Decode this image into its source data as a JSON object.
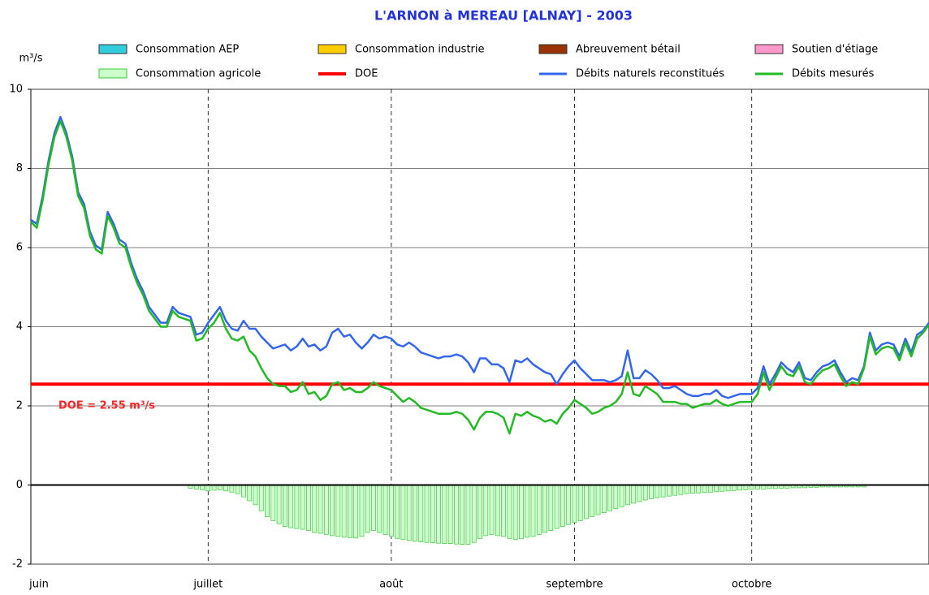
{
  "chart_data": {
    "type": "line",
    "title": "L'ARNON à MEREAU [ALNAY] - 2003",
    "y_label": "m³/s",
    "annotation": "DOE = 2.55 m³/s",
    "ylim": [
      -2,
      10
    ],
    "yticks": [
      -2,
      0,
      2,
      4,
      6,
      8,
      10
    ],
    "grid": true,
    "categories": [
      "juin",
      null,
      null,
      null,
      null,
      null,
      null,
      null,
      null,
      null,
      null,
      null,
      null,
      null,
      null,
      null,
      null,
      null,
      null,
      null,
      null,
      null,
      null,
      null,
      null,
      null,
      null,
      null,
      null,
      null,
      "juillet",
      null,
      null,
      null,
      null,
      null,
      null,
      null,
      null,
      null,
      null,
      null,
      null,
      null,
      null,
      null,
      null,
      null,
      null,
      null,
      null,
      null,
      null,
      null,
      null,
      null,
      null,
      null,
      null,
      null,
      null,
      "août",
      null,
      null,
      null,
      null,
      null,
      null,
      null,
      null,
      null,
      null,
      null,
      null,
      null,
      null,
      null,
      null,
      null,
      null,
      null,
      null,
      null,
      null,
      null,
      null,
      null,
      null,
      null,
      null,
      null,
      null,
      "septembre",
      null,
      null,
      null,
      null,
      null,
      null,
      null,
      null,
      null,
      null,
      null,
      null,
      null,
      null,
      null,
      null,
      null,
      null,
      null,
      null,
      null,
      null,
      null,
      null,
      null,
      null,
      null,
      null,
      null,
      "octobre",
      null,
      null,
      null,
      null,
      null,
      null,
      null,
      null,
      null,
      null,
      null,
      null,
      null,
      null,
      null,
      null,
      null,
      null,
      null,
      null,
      null,
      null,
      null,
      null,
      null,
      null,
      null,
      null,
      null,
      null
    ],
    "series": [
      {
        "name": "Consommation AEP",
        "type": "area",
        "color": "#33ccdd"
      },
      {
        "name": "Consommation industrie",
        "type": "area",
        "color": "#ffcc00"
      },
      {
        "name": "Abreuvement bétail",
        "type": "area",
        "color": "#993300"
      },
      {
        "name": "Soutien d'étiage",
        "type": "area",
        "color": "#ff99cc"
      },
      {
        "name": "Consommation agricole",
        "type": "bar",
        "color": "#ccffcc",
        "values": [
          null,
          null,
          null,
          null,
          null,
          null,
          null,
          null,
          null,
          null,
          null,
          null,
          null,
          null,
          null,
          null,
          null,
          null,
          null,
          null,
          null,
          null,
          null,
          null,
          null,
          null,
          null,
          -0.08,
          -0.1,
          -0.12,
          -0.15,
          -0.13,
          -0.12,
          -0.15,
          -0.18,
          -0.22,
          -0.3,
          -0.4,
          -0.5,
          -0.65,
          -0.8,
          -0.9,
          -0.98,
          -1.05,
          -1.08,
          -1.1,
          -1.12,
          -1.15,
          -1.2,
          -1.22,
          -1.25,
          -1.28,
          -1.3,
          -1.32,
          -1.33,
          -1.34,
          -1.3,
          -1.2,
          -1.15,
          -1.2,
          -1.25,
          -1.3,
          -1.35,
          -1.38,
          -1.4,
          -1.42,
          -1.44,
          -1.45,
          -1.46,
          -1.47,
          -1.48,
          -1.48,
          -1.49,
          -1.5,
          -1.5,
          -1.45,
          -1.35,
          -1.28,
          -1.25,
          -1.28,
          -1.3,
          -1.35,
          -1.38,
          -1.36,
          -1.32,
          -1.3,
          -1.25,
          -1.2,
          -1.15,
          -1.1,
          -1.05,
          -1.0,
          -0.95,
          -0.9,
          -0.85,
          -0.8,
          -0.75,
          -0.7,
          -0.65,
          -0.6,
          -0.55,
          -0.5,
          -0.46,
          -0.42,
          -0.38,
          -0.35,
          -0.32,
          -0.3,
          -0.28,
          -0.26,
          -0.24,
          -0.22,
          -0.21,
          -0.2,
          -0.19,
          -0.18,
          -0.17,
          -0.16,
          -0.15,
          -0.14,
          -0.13,
          -0.12,
          -0.11,
          -0.1,
          -0.1,
          -0.09,
          -0.09,
          -0.08,
          -0.08,
          -0.07,
          -0.07,
          -0.07,
          -0.06,
          -0.06,
          -0.05,
          -0.05,
          -0.05,
          -0.05,
          -0.05,
          -0.05,
          -0.05,
          -0.05,
          null,
          null,
          null,
          null,
          null,
          null,
          null,
          null,
          null,
          null,
          null
        ]
      },
      {
        "name": "DOE",
        "type": "hline",
        "color": "#ff0000",
        "value": 2.55
      },
      {
        "name": "Débits naturels reconstitués",
        "type": "line",
        "color": "#3366ee",
        "values": [
          6.7,
          6.6,
          7.3,
          8.2,
          8.9,
          9.3,
          8.9,
          8.3,
          7.4,
          7.1,
          6.4,
          6.05,
          5.95,
          6.9,
          6.6,
          6.2,
          6.1,
          5.6,
          5.2,
          4.9,
          4.5,
          4.3,
          4.1,
          4.1,
          4.5,
          4.35,
          4.3,
          4.25,
          3.8,
          3.85,
          4.1,
          4.3,
          4.5,
          4.15,
          3.95,
          3.9,
          4.15,
          3.95,
          3.95,
          3.75,
          3.6,
          3.45,
          3.5,
          3.55,
          3.4,
          3.5,
          3.7,
          3.5,
          3.55,
          3.4,
          3.5,
          3.85,
          3.95,
          3.75,
          3.8,
          3.6,
          3.45,
          3.6,
          3.8,
          3.7,
          3.75,
          3.7,
          3.55,
          3.5,
          3.6,
          3.5,
          3.35,
          3.3,
          3.25,
          3.2,
          3.25,
          3.25,
          3.3,
          3.25,
          3.1,
          2.85,
          3.2,
          3.2,
          3.05,
          3.05,
          2.95,
          2.6,
          3.15,
          3.1,
          3.2,
          3.05,
          2.95,
          2.85,
          2.8,
          2.55,
          2.8,
          3.0,
          3.15,
          2.95,
          2.8,
          2.65,
          2.65,
          2.65,
          2.6,
          2.65,
          2.75,
          3.4,
          2.7,
          2.7,
          2.9,
          2.8,
          2.65,
          2.45,
          2.45,
          2.5,
          2.4,
          2.3,
          2.25,
          2.25,
          2.3,
          2.3,
          2.4,
          2.25,
          2.2,
          2.25,
          2.3,
          2.3,
          2.3,
          2.45,
          3.0,
          2.55,
          2.8,
          3.1,
          2.95,
          2.85,
          3.1,
          2.7,
          2.65,
          2.85,
          3.0,
          3.05,
          3.15,
          2.85,
          2.6,
          2.7,
          2.65,
          3.0,
          3.85,
          3.4,
          3.55,
          3.6,
          3.55,
          3.25,
          3.7,
          3.35,
          3.8,
          3.9,
          4.1
        ]
      },
      {
        "name": "Débits mesurés",
        "type": "line",
        "color": "#22bb22",
        "values": [
          6.65,
          6.5,
          7.2,
          8.1,
          8.8,
          9.2,
          8.8,
          8.2,
          7.3,
          7.0,
          6.3,
          5.95,
          5.85,
          6.8,
          6.5,
          6.1,
          6.0,
          5.5,
          5.1,
          4.8,
          4.4,
          4.2,
          4.0,
          4.0,
          4.4,
          4.25,
          4.2,
          4.15,
          3.65,
          3.7,
          3.95,
          4.1,
          4.35,
          3.95,
          3.7,
          3.65,
          3.75,
          3.4,
          3.25,
          2.95,
          2.7,
          2.55,
          2.5,
          2.5,
          2.35,
          2.4,
          2.6,
          2.3,
          2.35,
          2.15,
          2.25,
          2.55,
          2.6,
          2.4,
          2.45,
          2.35,
          2.35,
          2.45,
          2.6,
          2.5,
          2.45,
          2.4,
          2.25,
          2.1,
          2.2,
          2.1,
          1.95,
          1.9,
          1.85,
          1.8,
          1.8,
          1.8,
          1.85,
          1.8,
          1.65,
          1.4,
          1.7,
          1.85,
          1.85,
          1.8,
          1.7,
          1.3,
          1.8,
          1.75,
          1.85,
          1.75,
          1.7,
          1.6,
          1.65,
          1.55,
          1.8,
          1.95,
          2.15,
          2.05,
          1.95,
          1.8,
          1.85,
          1.95,
          2.0,
          2.1,
          2.3,
          2.85,
          2.3,
          2.25,
          2.5,
          2.4,
          2.3,
          2.1,
          2.1,
          2.1,
          2.05,
          2.05,
          1.95,
          2.0,
          2.05,
          2.05,
          2.15,
          2.05,
          2.0,
          2.05,
          2.1,
          2.1,
          2.1,
          2.3,
          2.85,
          2.4,
          2.7,
          3.0,
          2.8,
          2.75,
          3.0,
          2.6,
          2.55,
          2.75,
          2.9,
          2.95,
          3.05,
          2.75,
          2.5,
          2.6,
          2.55,
          2.95,
          3.75,
          3.3,
          3.45,
          3.5,
          3.45,
          3.15,
          3.6,
          3.25,
          3.7,
          3.85,
          4.05
        ]
      }
    ]
  }
}
